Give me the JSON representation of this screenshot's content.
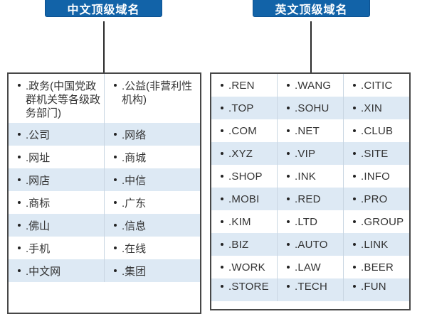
{
  "colors": {
    "header_bg": "#1263a8",
    "header_border": "#0d5190",
    "header_text": "#ffffff",
    "row_bg": "#ffffff",
    "row_alt_bg": "#dde9f4",
    "border": "#474747",
    "divider": "#c9d6e2",
    "text": "#333333",
    "bullet": "#222222",
    "connector": "#2a2a2a"
  },
  "chinese_section": {
    "header": "中文顶级域名",
    "rows": [
      [
        ".政务(中国党政群机关等各级政务部门)",
        ".公益(非营利性机构)"
      ],
      [
        ".公司",
        ".网络"
      ],
      [
        ".网址",
        ".商城"
      ],
      [
        ".网店",
        ".中信"
      ],
      [
        ".商标",
        ".广东"
      ],
      [
        ".佛山",
        ".信息"
      ],
      [
        ".手机",
        ".在线"
      ],
      [
        ".中文网",
        ".集团"
      ]
    ]
  },
  "english_section": {
    "header": "英文顶级域名",
    "rows": [
      [
        ".REN",
        ".WANG",
        ".CITIC"
      ],
      [
        ".TOP",
        ".SOHU",
        ".XIN"
      ],
      [
        ".COM",
        ".NET",
        ".CLUB"
      ],
      [
        ".XYZ",
        ".VIP",
        ".SITE"
      ],
      [
        ".SHOP",
        ".INK",
        ".INFO"
      ],
      [
        ".MOBI",
        ".RED",
        ".PRO"
      ],
      [
        ".KIM",
        ".LTD",
        ".GROUP"
      ],
      [
        ".BIZ",
        ".AUTO",
        ".LINK"
      ],
      [
        ".WORK",
        ".LAW",
        ".BEER"
      ],
      [
        ".STORE",
        ".TECH",
        ".FUN"
      ]
    ]
  }
}
